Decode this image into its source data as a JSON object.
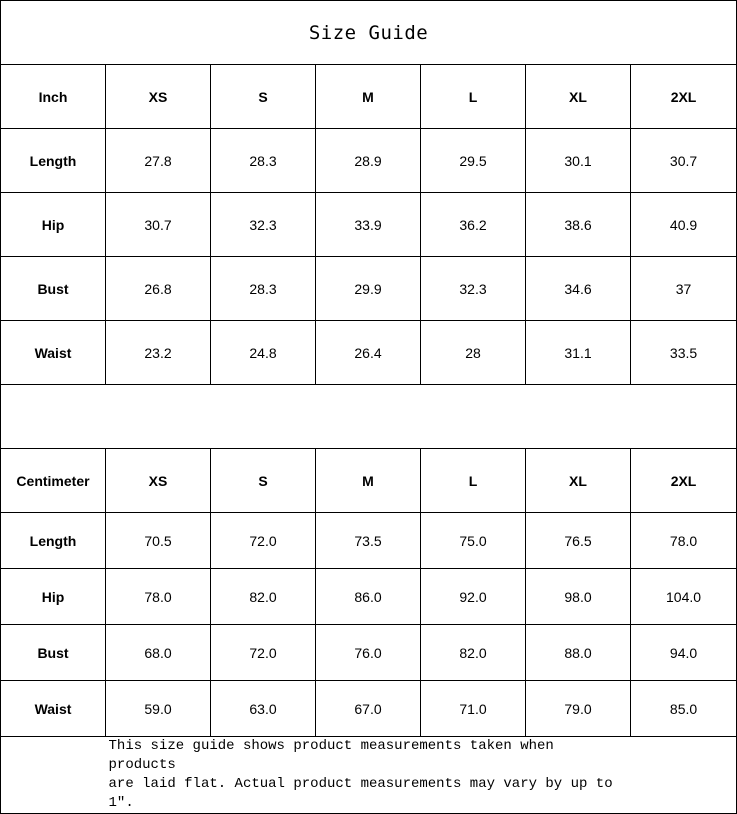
{
  "title": "Size Guide",
  "inch": {
    "header": [
      "Inch",
      "XS",
      "S",
      "M",
      "L",
      "XL",
      "2XL"
    ],
    "rows": [
      {
        "label": "Length",
        "values": [
          "27.8",
          "28.3",
          "28.9",
          "29.5",
          "30.1",
          "30.7"
        ]
      },
      {
        "label": "Hip",
        "values": [
          "30.7",
          "32.3",
          "33.9",
          "36.2",
          "38.6",
          "40.9"
        ]
      },
      {
        "label": "Bust",
        "values": [
          "26.8",
          "28.3",
          "29.9",
          "32.3",
          "34.6",
          "37"
        ]
      },
      {
        "label": "Waist",
        "values": [
          "23.2",
          "24.8",
          "26.4",
          "28",
          "31.1",
          "33.5"
        ]
      }
    ]
  },
  "centimeter": {
    "header": [
      "Centimeter",
      "XS",
      "S",
      "M",
      "L",
      "XL",
      "2XL"
    ],
    "rows": [
      {
        "label": "Length",
        "values": [
          "70.5",
          "72.0",
          "73.5",
          "75.0",
          "76.5",
          "78.0"
        ]
      },
      {
        "label": "Hip",
        "values": [
          "78.0",
          "82.0",
          "86.0",
          "92.0",
          "98.0",
          "104.0"
        ]
      },
      {
        "label": "Bust",
        "values": [
          "68.0",
          "72.0",
          "76.0",
          "82.0",
          "88.0",
          "94.0"
        ]
      },
      {
        "label": "Waist",
        "values": [
          "59.0",
          "63.0",
          "67.0",
          "71.0",
          "79.0",
          "85.0"
        ]
      }
    ]
  },
  "footer": {
    "line1": "This size guide shows product measurements taken when products",
    "line2": "are laid flat. Actual product measurements may vary by up to 1″."
  }
}
